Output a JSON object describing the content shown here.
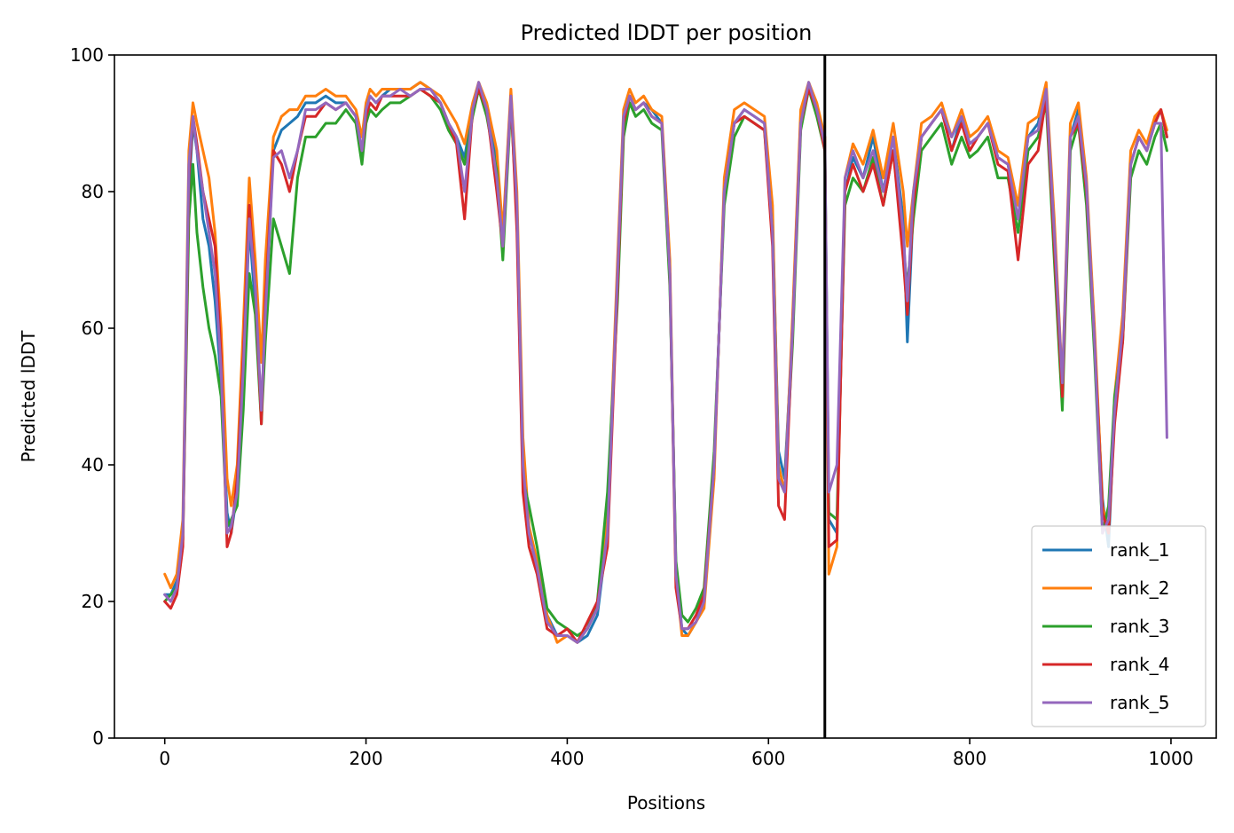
{
  "chart_data": {
    "type": "line",
    "title": "Predicted lDDT per position",
    "xlabel": "Positions",
    "ylabel": "Predicted lDDT",
    "xlim": [
      -50,
      1045
    ],
    "ylim": [
      0,
      100
    ],
    "xticks": [
      0,
      200,
      400,
      600,
      800,
      1000
    ],
    "yticks": [
      0,
      20,
      40,
      60,
      80,
      100
    ],
    "grid": false,
    "legend_position": "lower-right",
    "vline": 656,
    "series": [
      {
        "name": "rank_1",
        "color": "#1f77b4",
        "x": [
          0,
          6,
          12,
          18,
          24,
          28,
          32,
          38,
          44,
          50,
          56,
          62,
          66,
          72,
          78,
          84,
          90,
          96,
          100,
          108,
          116,
          124,
          132,
          140,
          150,
          160,
          170,
          180,
          190,
          196,
          200,
          204,
          210,
          216,
          224,
          234,
          244,
          254,
          264,
          274,
          282,
          290,
          298,
          306,
          312,
          320,
          330,
          336,
          344,
          350,
          356,
          362,
          370,
          380,
          390,
          400,
          410,
          420,
          430,
          440,
          450,
          456,
          462,
          468,
          476,
          484,
          494,
          502,
          508,
          514,
          520,
          528,
          536,
          546,
          556,
          566,
          576,
          586,
          596,
          604,
          610,
          616,
          624,
          632,
          640,
          648,
          656,
          660,
          668,
          676,
          684,
          694,
          704,
          714,
          724,
          734,
          738,
          744,
          752,
          762,
          772,
          782,
          792,
          800,
          808,
          818,
          828,
          838,
          848,
          858,
          868,
          876,
          884,
          892,
          900,
          908,
          916,
          924,
          932,
          938,
          944,
          952,
          960,
          968,
          976,
          984,
          990,
          996
        ],
        "values": [
          21,
          21,
          23,
          30,
          80,
          90,
          86,
          76,
          72,
          64,
          52,
          33,
          30,
          36,
          52,
          75,
          63,
          47,
          62,
          86,
          89,
          90,
          91,
          93,
          93,
          94,
          93,
          93,
          91,
          85,
          92,
          94,
          93,
          94,
          95,
          95,
          95,
          96,
          95,
          93,
          90,
          88,
          85,
          92,
          96,
          92,
          84,
          71,
          94,
          78,
          42,
          30,
          25,
          18,
          15,
          15,
          14,
          15,
          18,
          30,
          68,
          90,
          94,
          92,
          93,
          92,
          90,
          67,
          25,
          16,
          15,
          17,
          20,
          40,
          80,
          90,
          92,
          91,
          90,
          76,
          42,
          38,
          60,
          90,
          96,
          92,
          88,
          32,
          30,
          80,
          85,
          82,
          88,
          80,
          88,
          76,
          58,
          78,
          88,
          90,
          92,
          86,
          91,
          87,
          88,
          90,
          85,
          84,
          76,
          88,
          90,
          95,
          74,
          50,
          88,
          92,
          80,
          58,
          35,
          28,
          48,
          60,
          84,
          88,
          86,
          90,
          92,
          88
        ]
      },
      {
        "name": "rank_2",
        "color": "#ff7f0e",
        "x": [
          0,
          6,
          12,
          18,
          24,
          28,
          32,
          38,
          44,
          50,
          56,
          62,
          66,
          72,
          78,
          84,
          90,
          96,
          100,
          108,
          116,
          124,
          132,
          140,
          150,
          160,
          170,
          180,
          190,
          196,
          200,
          204,
          210,
          216,
          224,
          234,
          244,
          254,
          264,
          274,
          282,
          290,
          298,
          306,
          312,
          320,
          330,
          336,
          344,
          350,
          356,
          362,
          370,
          380,
          390,
          400,
          410,
          420,
          430,
          440,
          450,
          456,
          462,
          468,
          476,
          484,
          494,
          502,
          508,
          514,
          520,
          528,
          536,
          546,
          556,
          566,
          576,
          586,
          596,
          604,
          610,
          616,
          624,
          632,
          640,
          648,
          656,
          660,
          668,
          676,
          684,
          694,
          704,
          714,
          724,
          734,
          738,
          744,
          752,
          762,
          772,
          782,
          792,
          800,
          808,
          818,
          828,
          838,
          848,
          858,
          868,
          876,
          884,
          892,
          900,
          908,
          916,
          924,
          932,
          938,
          944,
          952,
          960,
          968,
          976,
          984,
          990,
          996
        ],
        "values": [
          24,
          22,
          24,
          32,
          86,
          93,
          90,
          86,
          82,
          74,
          60,
          38,
          34,
          40,
          60,
          82,
          70,
          55,
          70,
          88,
          91,
          92,
          92,
          94,
          94,
          95,
          94,
          94,
          92,
          88,
          93,
          95,
          94,
          95,
          95,
          95,
          95,
          96,
          95,
          94,
          92,
          90,
          87,
          93,
          96,
          93,
          86,
          74,
          95,
          80,
          44,
          31,
          26,
          18,
          14,
          15,
          14,
          16,
          19,
          32,
          70,
          92,
          95,
          93,
          94,
          92,
          91,
          70,
          24,
          15,
          15,
          17,
          19,
          38,
          82,
          92,
          93,
          92,
          91,
          78,
          40,
          36,
          62,
          92,
          96,
          93,
          88,
          24,
          28,
          82,
          87,
          84,
          89,
          82,
          90,
          80,
          72,
          80,
          90,
          91,
          93,
          88,
          92,
          88,
          89,
          91,
          86,
          85,
          78,
          90,
          91,
          96,
          76,
          52,
          90,
          93,
          82,
          60,
          34,
          30,
          50,
          62,
          86,
          89,
          87,
          91,
          92,
          89
        ]
      },
      {
        "name": "rank_3",
        "color": "#2ca02c",
        "x": [
          0,
          6,
          12,
          18,
          24,
          28,
          32,
          38,
          44,
          50,
          56,
          62,
          66,
          72,
          78,
          84,
          90,
          96,
          100,
          108,
          116,
          124,
          132,
          140,
          150,
          160,
          170,
          180,
          190,
          196,
          200,
          204,
          210,
          216,
          224,
          234,
          244,
          254,
          264,
          274,
          282,
          290,
          298,
          306,
          312,
          320,
          330,
          336,
          344,
          350,
          356,
          362,
          370,
          380,
          390,
          400,
          410,
          420,
          430,
          440,
          450,
          456,
          462,
          468,
          476,
          484,
          494,
          502,
          508,
          514,
          520,
          528,
          536,
          546,
          556,
          566,
          576,
          586,
          596,
          604,
          610,
          616,
          624,
          632,
          640,
          648,
          656,
          660,
          668,
          676,
          684,
          694,
          704,
          714,
          724,
          734,
          738,
          744,
          752,
          762,
          772,
          782,
          792,
          800,
          808,
          818,
          828,
          838,
          848,
          858,
          868,
          876,
          884,
          892,
          900,
          908,
          916,
          924,
          932,
          938,
          944,
          952,
          960,
          968,
          976,
          984,
          990,
          996
        ],
        "values": [
          20,
          21,
          22,
          29,
          76,
          84,
          74,
          66,
          60,
          56,
          50,
          31,
          32,
          34,
          48,
          68,
          62,
          46,
          58,
          76,
          72,
          68,
          82,
          88,
          88,
          90,
          90,
          92,
          90,
          84,
          90,
          92,
          91,
          92,
          93,
          93,
          94,
          95,
          94,
          92,
          89,
          87,
          84,
          91,
          95,
          91,
          83,
          70,
          93,
          76,
          38,
          34,
          28,
          19,
          17,
          16,
          15,
          16,
          20,
          36,
          64,
          88,
          93,
          91,
          92,
          90,
          89,
          66,
          26,
          18,
          17,
          19,
          22,
          42,
          78,
          88,
          91,
          90,
          89,
          74,
          38,
          36,
          58,
          89,
          95,
          91,
          86,
          33,
          32,
          78,
          82,
          80,
          85,
          78,
          86,
          72,
          66,
          76,
          86,
          88,
          90,
          84,
          88,
          85,
          86,
          88,
          82,
          82,
          74,
          86,
          88,
          93,
          70,
          48,
          86,
          90,
          78,
          56,
          30,
          34,
          50,
          58,
          82,
          86,
          84,
          88,
          90,
          86
        ]
      },
      {
        "name": "rank_4",
        "color": "#d62728",
        "x": [
          0,
          6,
          12,
          18,
          24,
          28,
          32,
          38,
          44,
          50,
          56,
          62,
          66,
          72,
          78,
          84,
          90,
          96,
          100,
          108,
          116,
          124,
          132,
          140,
          150,
          160,
          170,
          180,
          190,
          196,
          200,
          204,
          210,
          216,
          224,
          234,
          244,
          254,
          264,
          274,
          282,
          290,
          298,
          306,
          312,
          320,
          330,
          336,
          344,
          350,
          356,
          362,
          370,
          380,
          390,
          400,
          410,
          420,
          430,
          440,
          450,
          456,
          462,
          468,
          476,
          484,
          494,
          502,
          508,
          514,
          520,
          528,
          536,
          546,
          556,
          566,
          576,
          586,
          596,
          604,
          610,
          616,
          624,
          632,
          640,
          648,
          656,
          660,
          668,
          676,
          684,
          694,
          704,
          714,
          724,
          734,
          738,
          744,
          752,
          762,
          772,
          782,
          792,
          800,
          808,
          818,
          828,
          838,
          848,
          858,
          868,
          876,
          884,
          892,
          900,
          908,
          916,
          924,
          932,
          938,
          944,
          952,
          960,
          968,
          976,
          984,
          990,
          996
        ],
        "values": [
          20,
          19,
          21,
          28,
          82,
          91,
          87,
          80,
          76,
          72,
          56,
          28,
          30,
          38,
          56,
          78,
          66,
          46,
          64,
          86,
          84,
          80,
          86,
          91,
          91,
          93,
          92,
          93,
          91,
          86,
          91,
          93,
          92,
          94,
          94,
          94,
          94,
          95,
          94,
          93,
          90,
          87,
          76,
          92,
          95,
          92,
          80,
          72,
          94,
          74,
          36,
          28,
          24,
          16,
          15,
          16,
          14,
          17,
          20,
          28,
          66,
          90,
          94,
          92,
          93,
          91,
          90,
          68,
          22,
          16,
          16,
          18,
          21,
          40,
          80,
          90,
          91,
          90,
          89,
          72,
          34,
          32,
          60,
          90,
          95,
          92,
          86,
          28,
          29,
          80,
          84,
          80,
          84,
          78,
          86,
          70,
          62,
          78,
          88,
          90,
          92,
          86,
          90,
          86,
          88,
          90,
          84,
          83,
          70,
          84,
          86,
          94,
          72,
          50,
          88,
          90,
          80,
          58,
          33,
          30,
          46,
          58,
          84,
          88,
          86,
          90,
          92,
          88
        ]
      },
      {
        "name": "rank_5",
        "color": "#9467bd",
        "x": [
          0,
          6,
          12,
          18,
          24,
          28,
          32,
          38,
          44,
          50,
          56,
          62,
          66,
          72,
          78,
          84,
          90,
          96,
          100,
          108,
          116,
          124,
          132,
          140,
          150,
          160,
          170,
          180,
          190,
          196,
          200,
          204,
          210,
          216,
          224,
          234,
          244,
          254,
          264,
          274,
          282,
          290,
          298,
          306,
          312,
          320,
          330,
          336,
          344,
          350,
          356,
          362,
          370,
          380,
          390,
          400,
          410,
          420,
          430,
          440,
          450,
          456,
          462,
          468,
          476,
          484,
          494,
          502,
          508,
          514,
          520,
          528,
          536,
          546,
          556,
          566,
          576,
          586,
          596,
          604,
          610,
          616,
          624,
          632,
          640,
          648,
          656,
          660,
          668,
          676,
          684,
          694,
          704,
          714,
          724,
          734,
          738,
          744,
          752,
          762,
          772,
          782,
          792,
          800,
          808,
          818,
          828,
          838,
          848,
          858,
          868,
          876,
          884,
          892,
          900,
          908,
          916,
          924,
          932,
          938,
          944,
          952,
          960,
          968,
          976,
          984,
          990,
          996
        ],
        "values": [
          21,
          20,
          22,
          30,
          84,
          91,
          86,
          80,
          74,
          68,
          54,
          30,
          31,
          36,
          54,
          76,
          66,
          48,
          62,
          85,
          86,
          82,
          86,
          92,
          92,
          93,
          92,
          93,
          91,
          86,
          92,
          94,
          93,
          94,
          94,
          95,
          94,
          95,
          95,
          93,
          90,
          88,
          80,
          92,
          96,
          92,
          82,
          72,
          94,
          78,
          40,
          30,
          25,
          17,
          15,
          15,
          14,
          16,
          19,
          30,
          68,
          91,
          94,
          92,
          93,
          91,
          90,
          68,
          24,
          16,
          16,
          17,
          20,
          40,
          80,
          90,
          92,
          91,
          90,
          74,
          38,
          36,
          60,
          90,
          96,
          92,
          87,
          36,
          40,
          82,
          86,
          82,
          86,
          80,
          88,
          74,
          64,
          80,
          88,
          90,
          92,
          88,
          91,
          87,
          88,
          90,
          85,
          84,
          76,
          88,
          89,
          95,
          74,
          52,
          88,
          91,
          81,
          58,
          30,
          32,
          48,
          60,
          84,
          88,
          86,
          90,
          90,
          44
        ]
      }
    ]
  }
}
